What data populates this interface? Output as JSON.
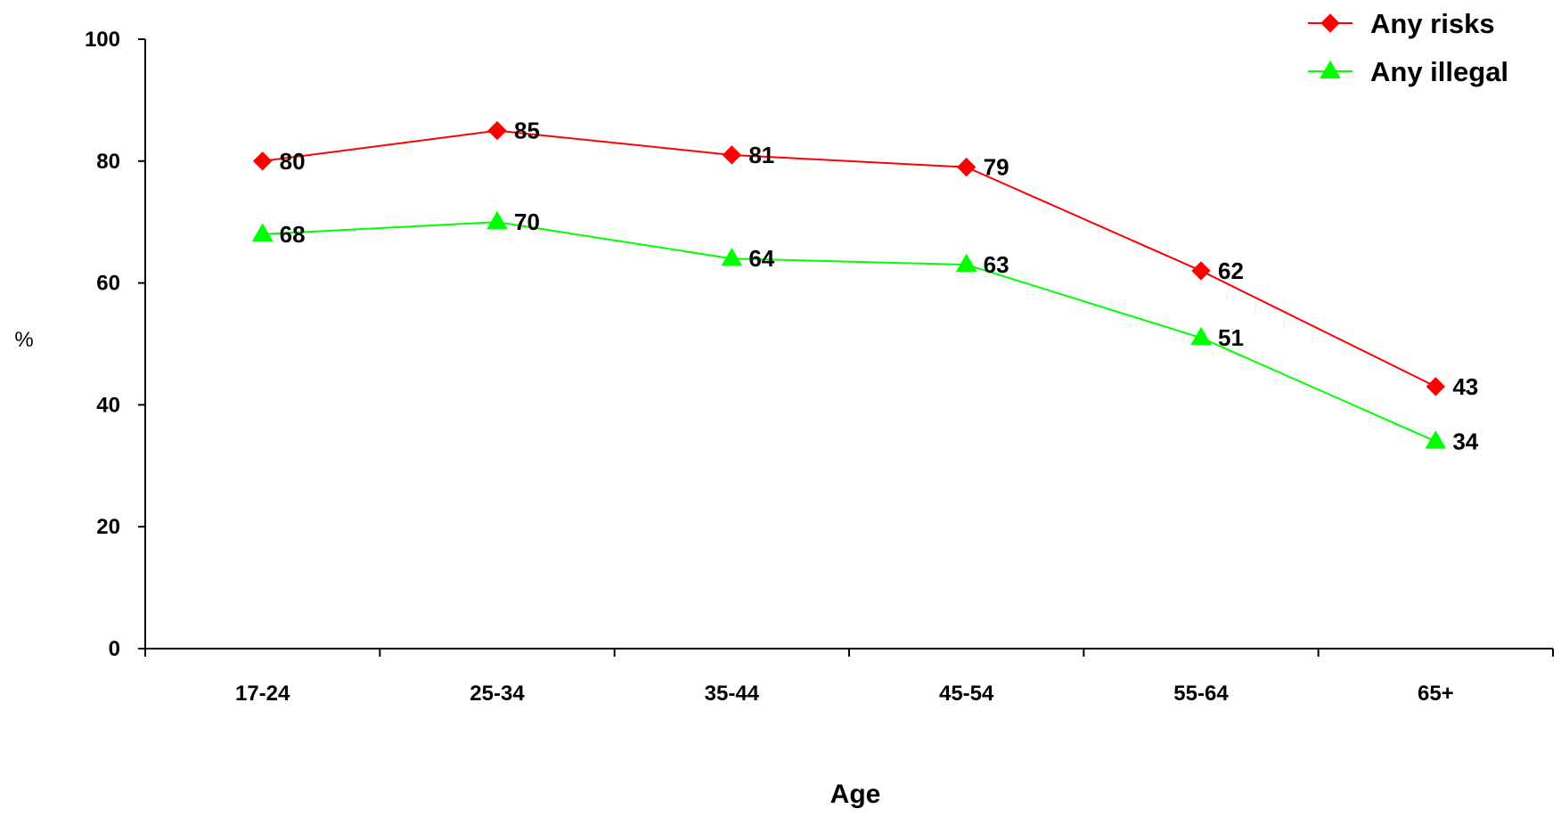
{
  "chart_data": {
    "type": "line",
    "title": "",
    "xlabel": "Age",
    "ylabel": "%",
    "categories": [
      "17-24",
      "25-34",
      "35-44",
      "45-54",
      "55-64",
      "65+"
    ],
    "ylim": [
      0,
      100
    ],
    "yticks": [
      0,
      20,
      40,
      60,
      80,
      100
    ],
    "grid": false,
    "legend_position": "top-right",
    "series": [
      {
        "name": "Any risks",
        "marker": "diamond",
        "color": "#ff0000",
        "values": [
          80,
          85,
          81,
          79,
          62,
          43
        ]
      },
      {
        "name": "Any illegal",
        "marker": "triangle",
        "color": "#00ff00",
        "values": [
          68,
          70,
          64,
          63,
          51,
          34
        ]
      }
    ]
  }
}
